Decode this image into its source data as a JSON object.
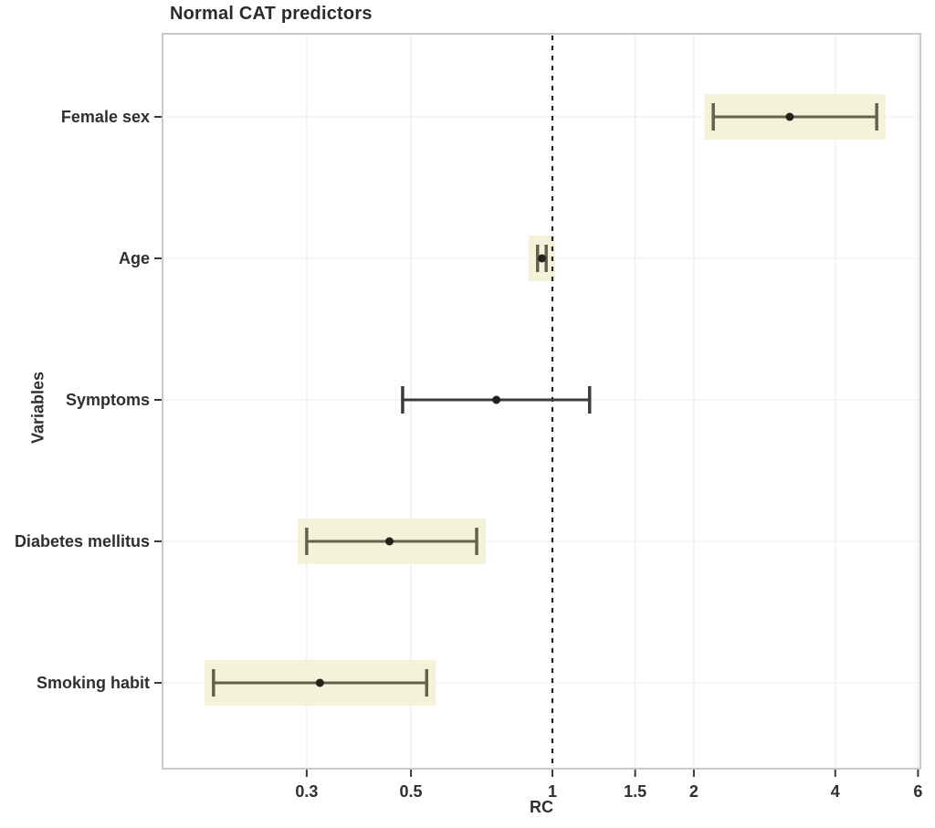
{
  "chart_data": {
    "type": "scatter",
    "subtype": "forest-plot",
    "title": "Normal CAT predictors",
    "xlabel": "RC",
    "ylabel": "Variables",
    "x_scale": "log",
    "x_ticks": [
      "0.3",
      "0.5",
      "1",
      "1.5",
      "2",
      "4",
      "6"
    ],
    "x_tick_values": [
      0.3,
      0.5,
      1,
      1.5,
      2,
      4,
      6
    ],
    "x_range": [
      0.148,
      6.07
    ],
    "reference_line": 1,
    "grid": true,
    "rows": [
      {
        "label": "Female sex",
        "estimate": 3.2,
        "ci_low": 2.2,
        "ci_high": 4.9,
        "highlighted": true
      },
      {
        "label": "Age",
        "estimate": 0.95,
        "ci_low": 0.93,
        "ci_high": 0.97,
        "highlighted": true
      },
      {
        "label": "Symptoms",
        "estimate": 0.76,
        "ci_low": 0.48,
        "ci_high": 1.2,
        "highlighted": false
      },
      {
        "label": "Diabetes mellitus",
        "estimate": 0.45,
        "ci_low": 0.3,
        "ci_high": 0.69,
        "highlighted": true
      },
      {
        "label": "Smoking habit",
        "estimate": 0.32,
        "ci_low": 0.19,
        "ci_high": 0.54,
        "highlighted": true
      }
    ],
    "colors": {
      "highlight_band": "#f5f2da",
      "bar_highlighted": "#63634d",
      "bar_neutral": "#3c3c3c",
      "point": "#22221a",
      "reference_line": "#1f1f1f",
      "panel_border": "#c6c9ce",
      "grid_vertical": "#edeff3",
      "grid_horizontal": "#f1f3f6",
      "tick": "#3a3a3a",
      "text": "#2f2f2f"
    }
  }
}
